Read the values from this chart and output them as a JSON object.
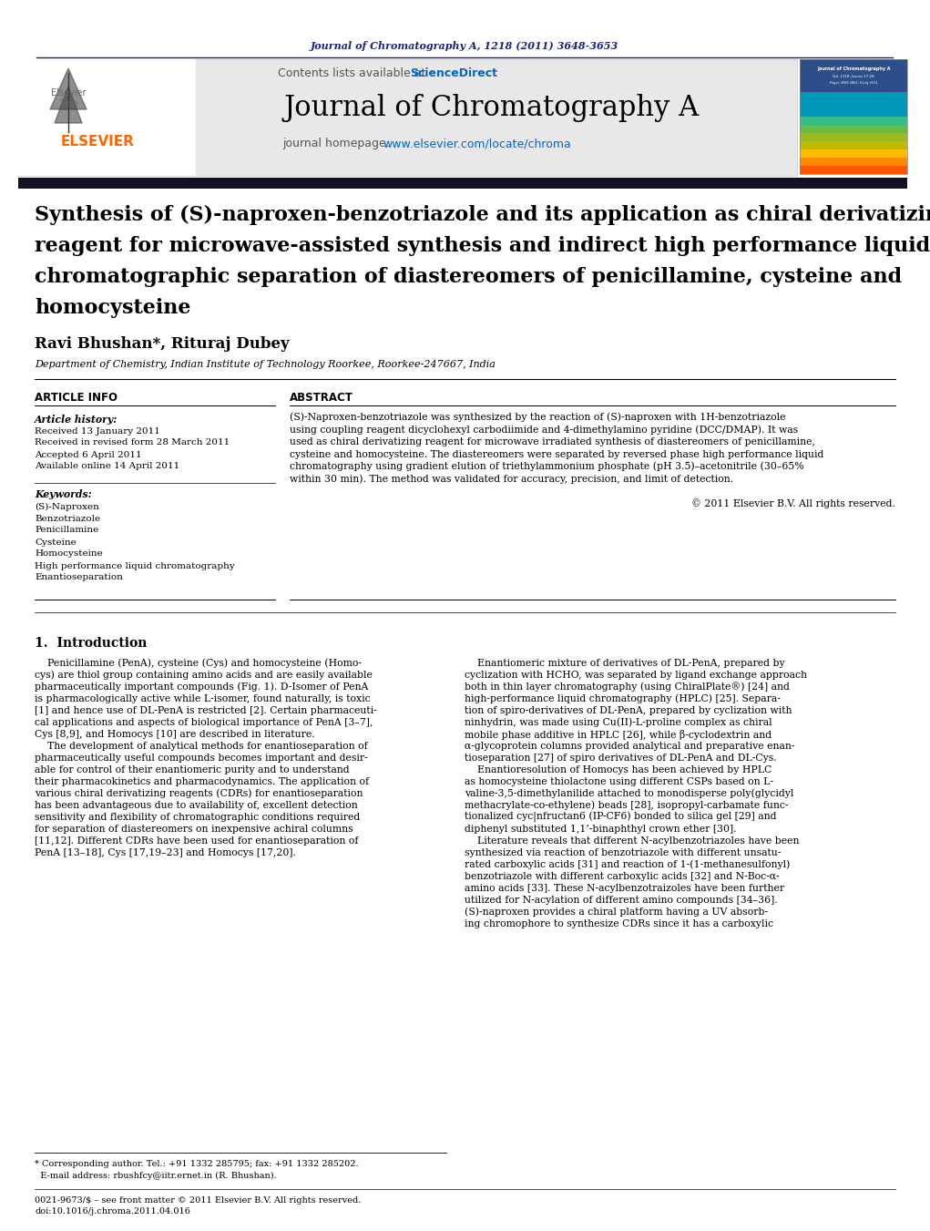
{
  "journal_ref": "Journal of Chromatography A, 1218 (2011) 3648-3653",
  "journal_ref_color": "#1a237e",
  "journal_name": "Journal of Chromatography A",
  "contents_text": "Contents lists available at ",
  "sciencedirect_text": "ScienceDirect",
  "homepage_text": "journal homepage: ",
  "homepage_url": "www.elsevier.com/locate/chroma",
  "homepage_url_color": "#0066cc",
  "elsevier_color": "#FF6600",
  "header_bg": "#e8e8e8",
  "dark_bar_color": "#1a1a2e",
  "article_title_lines": [
    "Synthesis of (S)-naproxen-benzotriazole and its application as chiral derivatizing",
    "reagent for microwave-assisted synthesis and indirect high performance liquid",
    "chromatographic separation of diastereomers of penicillamine, cysteine and",
    "homocysteine"
  ],
  "authors": "Ravi Bhushan*, Rituraj Dubey",
  "affiliation": "Department of Chemistry, Indian Institute of Technology Roorkee, Roorkee-247667, India",
  "article_info_label": "ARTICLE INFO",
  "abstract_label": "ABSTRACT",
  "article_history_label": "Article history:",
  "received1": "Received 13 January 2011",
  "received2": "Received in revised form 28 March 2011",
  "accepted": "Accepted 6 April 2011",
  "available": "Available online 14 April 2011",
  "keywords_label": "Keywords:",
  "keywords": [
    "(S)-Naproxen",
    "Benzotriazole",
    "Penicillamine",
    "Cysteine",
    "Homocysteine",
    "High performance liquid chromatography",
    "Enantioseparation"
  ],
  "abstract_lines": [
    "(S)-Naproxen-benzotriazole was synthesized by the reaction of (S)-naproxen with 1H-benzotriazole",
    "using coupling reagent dicyclohexyl carbodiimide and 4-dimethylamino pyridine (DCC/DMAP). It was",
    "used as chiral derivatizing reagent for microwave irradiated synthesis of diastereomers of penicillamine,",
    "cysteine and homocysteine. The diastereomers were separated by reversed phase high performance liquid",
    "chromatography using gradient elution of triethylammonium phosphate (pH 3.5)–acetonitrile (30–65%",
    "within 30 min). The method was validated for accuracy, precision, and limit of detection."
  ],
  "copyright": "© 2011 Elsevier B.V. All rights reserved.",
  "intro_heading": "1.  Introduction",
  "intro_col1_lines": [
    "    Penicillamine (PenA), cysteine (Cys) and homocysteine (Homo-",
    "cys) are thiol group containing amino acids and are easily available",
    "pharmaceutically important compounds (Fig. 1). D-Isomer of PenA",
    "is pharmacologically active while L-isomer, found naturally, is toxic",
    "[1] and hence use of DL-PenA is restricted [2]. Certain pharmaceuti-",
    "cal applications and aspects of biological importance of PenA [3–7],",
    "Cys [8,9], and Homocys [10] are described in literature.",
    "    The development of analytical methods for enantioseparation of",
    "pharmaceutically useful compounds becomes important and desir-",
    "able for control of their enantiomeric purity and to understand",
    "their pharmacokinetics and pharmacodynamics. The application of",
    "various chiral derivatizing reagents (CDRs) for enantioseparation",
    "has been advantageous due to availability of, excellent detection",
    "sensitivity and flexibility of chromatographic conditions required",
    "for separation of diastereomers on inexpensive achiral columns",
    "[11,12]. Different CDRs have been used for enantioseparation of",
    "PenA [13–18], Cys [17,19–23] and Homocys [17,20]."
  ],
  "intro_col2_lines": [
    "    Enantiomeric mixture of derivatives of DL-PenA, prepared by",
    "cyclization with HCHO, was separated by ligand exchange approach",
    "both in thin layer chromatography (using ChiralPlate®) [24] and",
    "high-performance liquid chromatography (HPLC) [25]. Separa-",
    "tion of spiro-derivatives of DL-PenA, prepared by cyclization with",
    "ninhydrin, was made using Cu(II)-L-proline complex as chiral",
    "mobile phase additive in HPLC [26], while β-cyclodextrin and",
    "α-glycoprotein columns provided analytical and preparative enan-",
    "tioseparation [27] of spiro derivatives of DL-PenA and DL-Cys.",
    "    Enantioresolution of Homocys has been achieved by HPLC",
    "as homocysteine thiolactone using different CSPs based on L-",
    "valine-3,5-dimethylanilide attached to monodisperse poly(glycidyl",
    "methacrylate-co-ethylene) beads [28], isopropyl-carbamate func-",
    "tionalized cyc|nfructan6 (IP-CF6) bonded to silica gel [29] and",
    "diphenyl substituted 1,1’-binaphthyl crown ether [30].",
    "    Literature reveals that different N-acylbenzotriazoles have been",
    "synthesized via reaction of benzotriazole with different unsatu-",
    "rated carboxylic acids [31] and reaction of 1-(1-methanesulfonyl)",
    "benzotriazole with different carboxylic acids [32] and N-Boc-α-",
    "amino acids [33]. These N-acylbenzotraizoles have been further",
    "utilized for N-acylation of different amino compounds [34–36].",
    "(S)-naproxen provides a chiral platform having a UV absorb-",
    "ing chromophore to synthesize CDRs since it has a carboxylic"
  ],
  "footnote1": "* Corresponding author. Tel.: +91 1332 285795; fax: +91 1332 285202.",
  "footnote2": "  E-mail address: rbushfcy@iitr.ernet.in (R. Bhushan).",
  "footer1": "0021-9673/$ – see front matter © 2011 Elsevier B.V. All rights reserved.",
  "footer2": "doi:10.1016/j.chroma.2011.04.016",
  "sciencedirect_color": "#0066cc",
  "sidebar_colors": [
    "#2c4f8a",
    "#2c4f8a",
    "#2c4f8a",
    "#2c4f8a",
    "#0099bb",
    "#0099bb",
    "#0099bb",
    "#33bb88",
    "#66bb44",
    "#99bb22",
    "#bbbb00",
    "#ffbb00",
    "#ff8800",
    "#ff5500"
  ]
}
